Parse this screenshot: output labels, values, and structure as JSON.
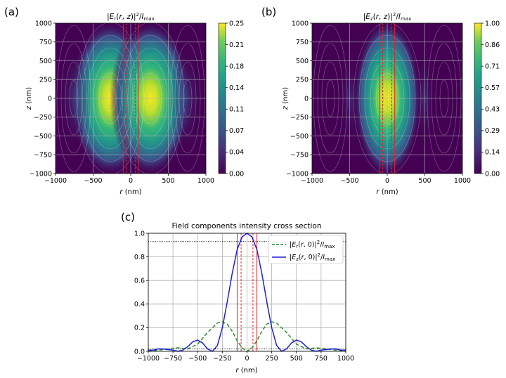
{
  "panel_labels": [
    "(a)",
    "(b)",
    "(c)"
  ],
  "chart_data": [
    {
      "type": "heatmap",
      "title": "|E_r(r,z)|²/I_max",
      "xlabel": "r (nm)",
      "ylabel": "z (nm)",
      "xlim": [
        -1000,
        1000
      ],
      "ylim": [
        -1000,
        1000
      ],
      "xticks": [
        "−1000",
        "−500",
        "0",
        "500",
        "1000"
      ],
      "yticks": [
        "1000",
        "750",
        "500",
        "250",
        "0",
        "−250",
        "−500",
        "−750",
        "−1000"
      ],
      "colorbar_ticks": [
        "0.25",
        "0.21",
        "0.18",
        "0.14",
        "0.11",
        "0.07",
        "0.04",
        "0.00"
      ],
      "colorbar_range": [
        0,
        0.25
      ],
      "field": "Er",
      "grid": true,
      "reference_lines_r": [
        -100,
        -60,
        60,
        100
      ],
      "colormap": "viridis"
    },
    {
      "type": "heatmap",
      "title": "|E_z(r,z)|²/I_max",
      "xlabel": "r (nm)",
      "ylabel": "z (nm)",
      "xlim": [
        -1000,
        1000
      ],
      "ylim": [
        -1000,
        1000
      ],
      "xticks": [
        "−1000",
        "−500",
        "0",
        "500",
        "1000"
      ],
      "yticks": [
        "1000",
        "750",
        "500",
        "250",
        "0",
        "−250",
        "−500",
        "−750",
        "−1000"
      ],
      "colorbar_ticks": [
        "1.00",
        "0.86",
        "0.71",
        "0.57",
        "0.43",
        "0.29",
        "0.14",
        "0.00"
      ],
      "colorbar_range": [
        0,
        1
      ],
      "field": "Ez",
      "grid": true,
      "reference_lines_r": [
        -100,
        -60,
        60,
        100
      ],
      "colormap": "viridis"
    },
    {
      "type": "line",
      "title": "Field components intensity cross section",
      "xlabel": "r (nm)",
      "ylabel": "",
      "xlim": [
        -1000,
        1000
      ],
      "ylim": [
        0,
        1.0
      ],
      "xticks": [
        "−1000",
        "−750",
        "−500",
        "−250",
        "0",
        "250",
        "500",
        "750",
        "1000"
      ],
      "yticks": [
        "0.0",
        "0.2",
        "0.4",
        "0.6",
        "0.8",
        "1.0"
      ],
      "grid": true,
      "legend": "top-right",
      "hlines": [
        0.93,
        0.02
      ],
      "reference_lines_r": [
        -100,
        -60,
        60,
        100
      ],
      "series": [
        {
          "name": "|E_r(r,0)|²/I_max",
          "color": "#2a8a2a",
          "style": "dashed",
          "x": [
            -1000,
            -900,
            -800,
            -700,
            -600,
            -500,
            -400,
            -300,
            -250,
            -200,
            -150,
            -100,
            -50,
            0,
            50,
            100,
            150,
            200,
            250,
            300,
            400,
            500,
            600,
            700,
            800,
            900,
            1000
          ],
          "y": [
            0.0,
            0.01,
            0.02,
            0.03,
            0.02,
            0.06,
            0.16,
            0.24,
            0.25,
            0.23,
            0.17,
            0.09,
            0.03,
            0.0,
            0.03,
            0.09,
            0.17,
            0.23,
            0.25,
            0.24,
            0.16,
            0.06,
            0.02,
            0.03,
            0.02,
            0.01,
            0.0
          ]
        },
        {
          "name": "|E_z(r,0)|²/I_max",
          "color": "#1f1fd6",
          "style": "solid",
          "x": [
            -1000,
            -950,
            -900,
            -850,
            -800,
            -750,
            -700,
            -650,
            -600,
            -550,
            -500,
            -450,
            -400,
            -350,
            -300,
            -250,
            -200,
            -150,
            -100,
            -50,
            0,
            50,
            100,
            150,
            200,
            250,
            300,
            350,
            400,
            450,
            500,
            550,
            600,
            650,
            700,
            750,
            800,
            850,
            900,
            950,
            1000
          ],
          "y": [
            0.01,
            0.01,
            0.02,
            0.02,
            0.015,
            0.01,
            0.0,
            0.01,
            0.04,
            0.08,
            0.095,
            0.07,
            0.02,
            0.0,
            0.05,
            0.2,
            0.42,
            0.66,
            0.86,
            0.97,
            1.0,
            0.97,
            0.86,
            0.66,
            0.42,
            0.2,
            0.05,
            0.0,
            0.02,
            0.07,
            0.095,
            0.08,
            0.04,
            0.01,
            0.0,
            0.01,
            0.015,
            0.02,
            0.02,
            0.01,
            0.01
          ]
        }
      ]
    }
  ]
}
